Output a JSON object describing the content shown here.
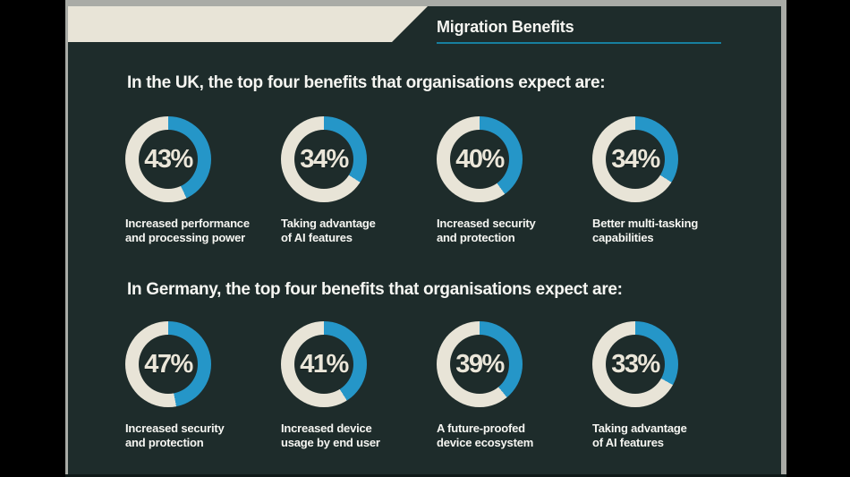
{
  "title": "Migration Benefits",
  "colors": {
    "background": "#1e2c2b",
    "accent_blue": "#2596c8",
    "cream": "#e8e4d7",
    "frame_gray": "#a9aba6",
    "title_underline_teal": "#177f9f"
  },
  "sections": [
    {
      "id": "uk",
      "heading": "In the UK, the top four benefits that organisations expect are:",
      "donuts": [
        {
          "pct": 43,
          "label_lines": [
            "Increased performance",
            "and processing power"
          ]
        },
        {
          "pct": 34,
          "label_lines": [
            "Taking advantage",
            "of AI features"
          ]
        },
        {
          "pct": 40,
          "label_lines": [
            "Increased security",
            "and protection"
          ]
        },
        {
          "pct": 34,
          "label_lines": [
            "Better multi-tasking",
            "capabilities"
          ]
        }
      ]
    },
    {
      "id": "germany",
      "heading": "In Germany, the top four benefits that organisations expect are:",
      "donuts": [
        {
          "pct": 47,
          "label_lines": [
            "Increased security",
            "and protection"
          ]
        },
        {
          "pct": 41,
          "label_lines": [
            "Increased device",
            "usage by end user"
          ]
        },
        {
          "pct": 39,
          "label_lines": [
            "A future-proofed",
            "device ecosystem"
          ]
        },
        {
          "pct": 33,
          "label_lines": [
            "Taking advantage",
            "of AI features"
          ]
        }
      ]
    }
  ],
  "chart_data": [
    {
      "type": "pie",
      "subtype": "donut-set",
      "title": "In the UK, the top four benefits that organisations expect are:",
      "categories": [
        "Increased performance and processing power",
        "Taking advantage of AI features",
        "Increased security and protection",
        "Better multi-tasking capabilities"
      ],
      "values": [
        43,
        34,
        40,
        34
      ],
      "unit": "%",
      "arc_start": "12 o'clock, clockwise",
      "filled_color": "#2596c8",
      "remainder_color": "#e8e4d7"
    },
    {
      "type": "pie",
      "subtype": "donut-set",
      "title": "In Germany, the top four benefits that organisations expect are:",
      "categories": [
        "Increased security and protection",
        "Increased device usage by end user",
        "A future-proofed device ecosystem",
        "Taking advantage of AI features"
      ],
      "values": [
        47,
        41,
        39,
        33
      ],
      "unit": "%",
      "arc_start": "12 o'clock, clockwise",
      "filled_color": "#2596c8",
      "remainder_color": "#e8e4d7"
    }
  ]
}
